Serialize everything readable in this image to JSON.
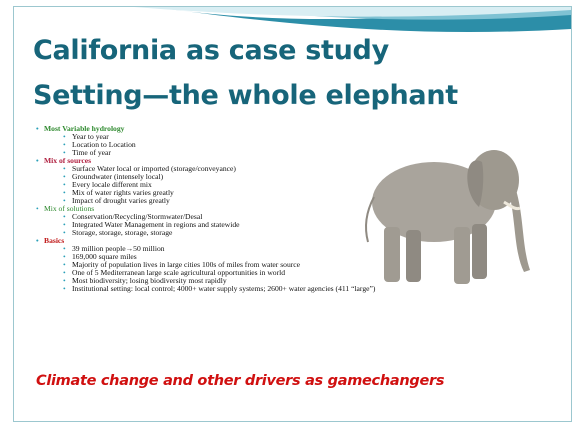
{
  "title": {
    "line1": "California as case study",
    "line2": "Setting—the whole elephant"
  },
  "sections": [
    {
      "heading": "Most Variable hydrology",
      "items": [
        "Year to year",
        "Location to Location",
        "Time of year"
      ]
    },
    {
      "heading": "Mix of sources",
      "items": [
        "Surface Water local or imported (storage/conveyance)",
        "Groundwater (intensely local)",
        "Every locale different mix",
        "Mix of water rights varies greatly",
        "Impact of drought varies greatly"
      ]
    },
    {
      "heading": "Mix of solutions",
      "items": [
        "Conservation/Recycling/Stormwater/Desal",
        "Integrated Water Management in regions and statewide",
        "Storage, storage, storage, storage"
      ]
    },
    {
      "heading": "Basics",
      "items": [
        "39 million people→50 million",
        "169,000 square miles",
        "Majority of population lives in large cities 100s of miles from water source",
        "One of 5 Mediterranean large scale agricultural opportunities in world",
        "Most biodiversity; losing biodiversity most rapidly",
        "Institutional setting:  local control; 4000+ water supply systems; 2600+ water agencies (411 “large”)"
      ]
    }
  ],
  "footer": "Climate change and other drivers as gamechangers"
}
